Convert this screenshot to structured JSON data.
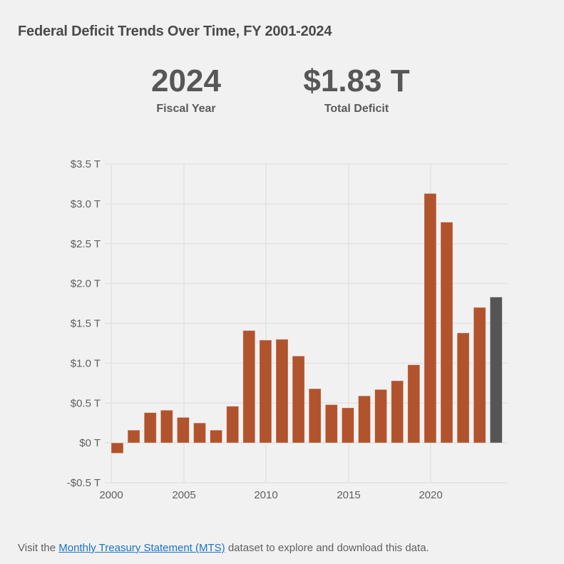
{
  "title": "Federal Deficit Trends Over Time, FY 2001-2024",
  "highlight": {
    "year_value": "2024",
    "year_label": "Fiscal Year",
    "deficit_value": "$1.83 T",
    "deficit_label": "Total Deficit"
  },
  "footer": {
    "prefix": "Visit the ",
    "link_text": "Monthly Treasury Statement (MTS)",
    "suffix": " dataset to explore and download this data."
  },
  "colors": {
    "bar": "#b1532d",
    "highlight_bar": "#555555",
    "grid": "#e2e2e2",
    "link": "#1a73c8"
  },
  "chart_data": {
    "type": "bar",
    "title": "Federal Deficit Trends Over Time, FY 2001-2024",
    "xlabel": "",
    "ylabel": "",
    "ylim": [
      -0.5,
      3.5
    ],
    "xlim": [
      2000,
      2024
    ],
    "grid": true,
    "y_ticks": [
      -0.5,
      0,
      0.5,
      1.0,
      1.5,
      2.0,
      2.5,
      3.0,
      3.5
    ],
    "y_tick_labels": [
      "-$0.5 T",
      "$0 T",
      "$0.5 T",
      "$1.0 T",
      "$1.5 T",
      "$2.0 T",
      "$2.5 T",
      "$3.0 T",
      "$3.5 T"
    ],
    "x_ticks": [
      2000,
      2005,
      2010,
      2015,
      2020
    ],
    "x_tick_labels": [
      "2000",
      "2005",
      "2010",
      "2015",
      "2020"
    ],
    "categories": [
      2001,
      2002,
      2003,
      2004,
      2005,
      2006,
      2007,
      2008,
      2009,
      2010,
      2011,
      2012,
      2013,
      2014,
      2015,
      2016,
      2017,
      2018,
      2019,
      2020,
      2021,
      2022,
      2023,
      2024
    ],
    "values": [
      -0.13,
      0.16,
      0.38,
      0.41,
      0.32,
      0.25,
      0.16,
      0.46,
      1.41,
      1.29,
      1.3,
      1.09,
      0.68,
      0.48,
      0.44,
      0.59,
      0.67,
      0.78,
      0.98,
      3.13,
      2.77,
      1.38,
      1.7,
      1.83
    ],
    "highlighted_category": 2024,
    "units": "trillions USD"
  }
}
